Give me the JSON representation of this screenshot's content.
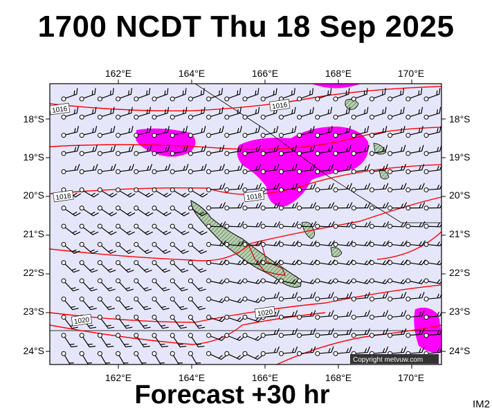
{
  "title": "1700 NCDT Thu 18 Sep 2025",
  "forecast_label": "Forecast +30 hr",
  "product_code": "IM2",
  "copyright": "Copyright metvuw.com",
  "axes": {
    "lon_labels": [
      "162°E",
      "164°E",
      "166°E",
      "168°E",
      "170°E"
    ],
    "lat_labels": [
      "18°S",
      "19°S",
      "20°S",
      "21°S",
      "22°S",
      "23°S",
      "24°S"
    ]
  },
  "isobar_labels": [
    {
      "text": "1016",
      "lon": 160.4,
      "lat": -17.75
    },
    {
      "text": "1016",
      "lon": 166.4,
      "lat": -17.65
    },
    {
      "text": "1018",
      "lon": 160.5,
      "lat": -20.0
    },
    {
      "text": "1018",
      "lon": 165.7,
      "lat": -20.0
    },
    {
      "text": "1020",
      "lon": 166.0,
      "lat": -23.0
    },
    {
      "text": "1020",
      "lon": 161.0,
      "lat": -23.2
    }
  ],
  "colors": {
    "ocean": "#e6e6fa",
    "isobar": "#ff0000",
    "rain": "#ff00ff",
    "land": "#a9c4a0",
    "frame": "#000000"
  }
}
